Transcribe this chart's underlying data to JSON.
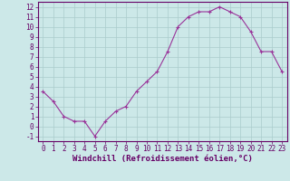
{
  "x": [
    0,
    1,
    2,
    3,
    4,
    5,
    6,
    7,
    8,
    9,
    10,
    11,
    12,
    13,
    14,
    15,
    16,
    17,
    18,
    19,
    20,
    21,
    22,
    23
  ],
  "y": [
    3.5,
    2.5,
    1.0,
    0.5,
    0.5,
    -1.0,
    0.5,
    1.5,
    2.0,
    3.5,
    4.5,
    5.5,
    7.5,
    10.0,
    11.0,
    11.5,
    11.5,
    12.0,
    11.5,
    11.0,
    9.5,
    7.5,
    7.5,
    5.5
  ],
  "line_color": "#993399",
  "marker": "+",
  "marker_size": 3,
  "marker_linewidth": 0.8,
  "line_width": 0.8,
  "bg_color": "#cce8e8",
  "grid_color": "#aacccc",
  "xlabel": "Windchill (Refroidissement éolien,°C)",
  "xlim_min": -0.5,
  "xlim_max": 23.5,
  "ylim_min": -1.5,
  "ylim_max": 12.5,
  "xticks": [
    0,
    1,
    2,
    3,
    4,
    5,
    6,
    7,
    8,
    9,
    10,
    11,
    12,
    13,
    14,
    15,
    16,
    17,
    18,
    19,
    20,
    21,
    22,
    23
  ],
  "yticks": [
    -1,
    0,
    1,
    2,
    3,
    4,
    5,
    6,
    7,
    8,
    9,
    10,
    11,
    12
  ],
  "tick_fontsize": 5.5,
  "xlabel_fontsize": 6.5,
  "axis_color": "#660066",
  "spine_color": "#660066"
}
